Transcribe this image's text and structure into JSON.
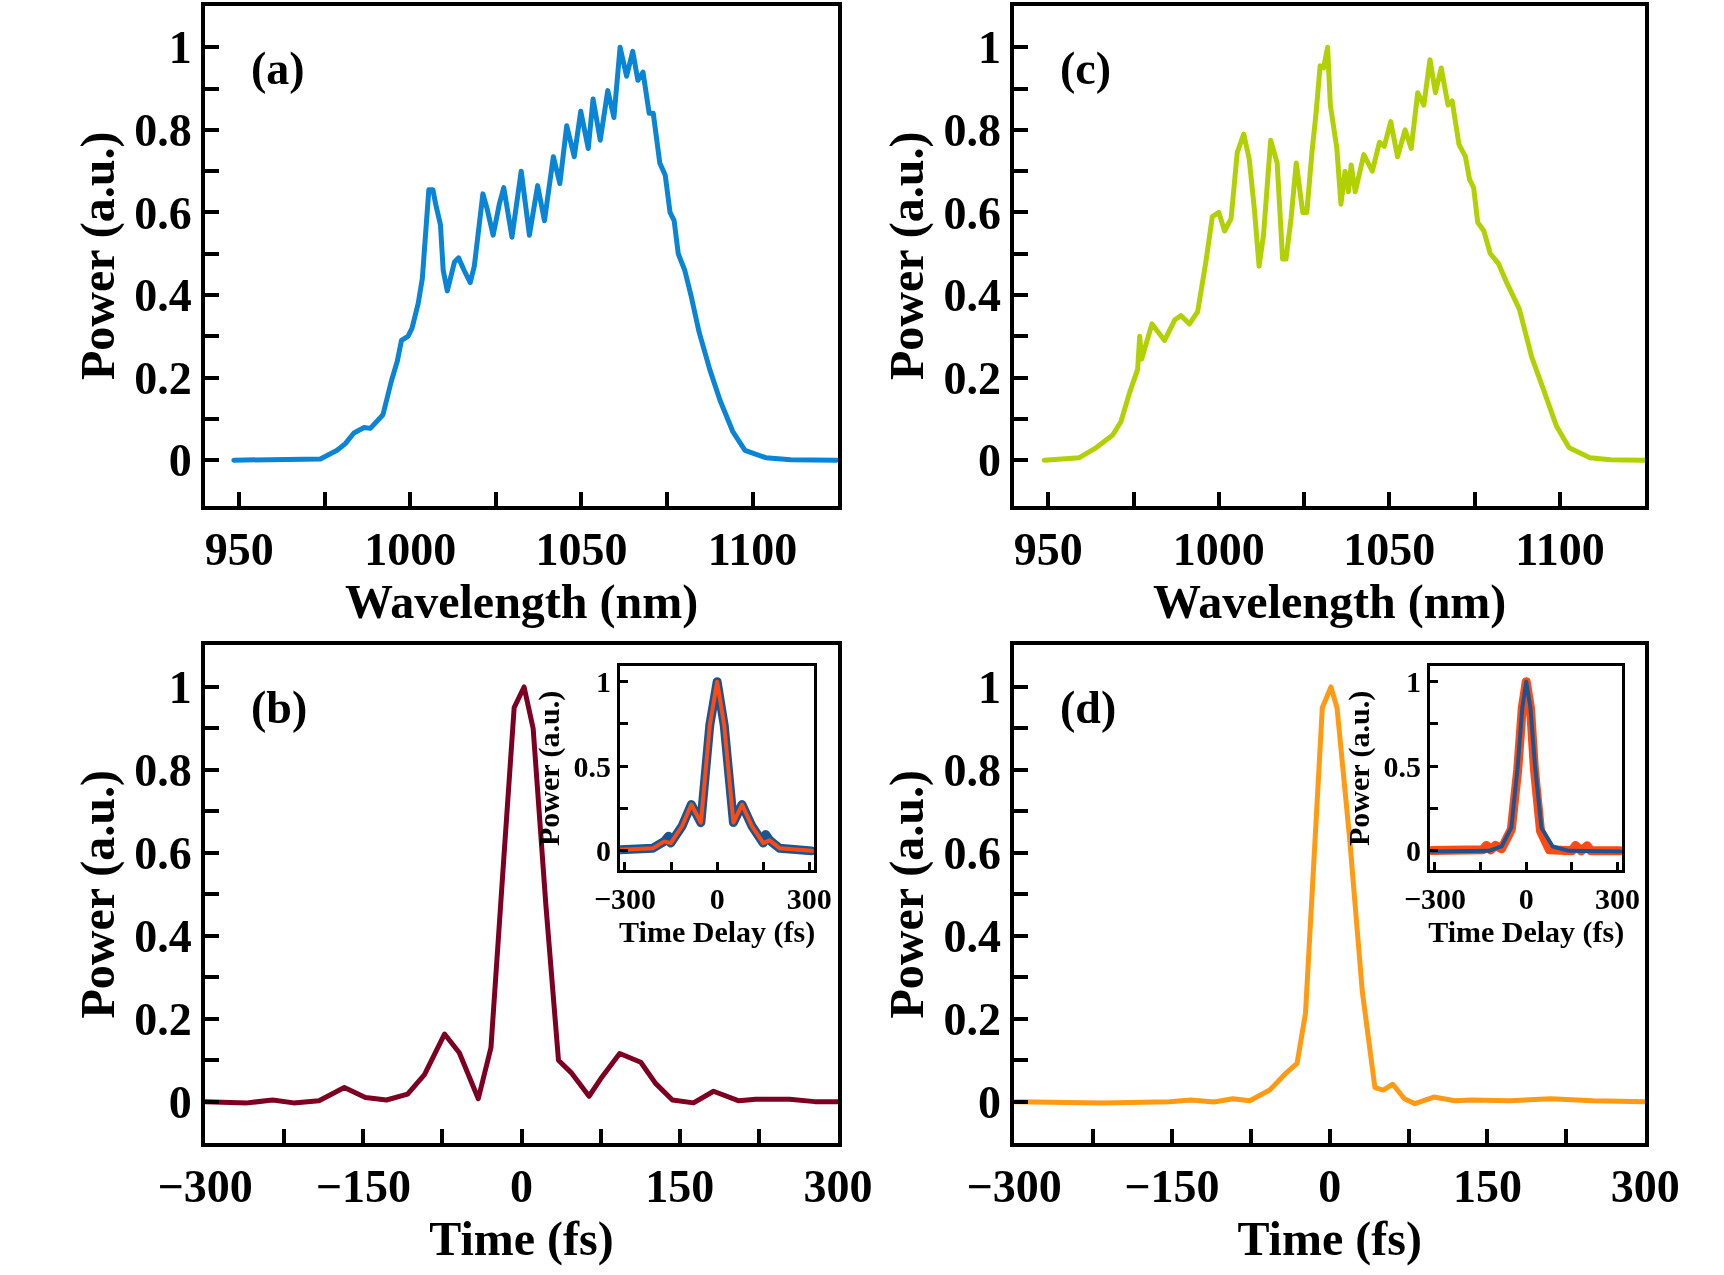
{
  "chart_data": [
    {
      "type": "line",
      "xlabel": "Wavelength (nm)",
      "ylabel": "Power (a.u.)",
      "annotations": [
        "(a)"
      ],
      "xlim": [
        940,
        1125
      ],
      "ylim": [
        -0.11,
        1.1
      ],
      "xticks": [
        950,
        {
          "value": 975,
          "label": null
        },
        1000,
        {
          "value": 1025,
          "label": null
        },
        1050,
        {
          "value": 1075,
          "label": null
        },
        1100
      ],
      "yticks": [
        0,
        {
          "value": 0.1,
          "label": null
        },
        0.2,
        {
          "value": 0.3,
          "label": null
        },
        0.4,
        {
          "value": 0.5,
          "label": null
        },
        0.6,
        {
          "value": 0.7,
          "label": null
        },
        0.8,
        {
          "value": 0.9,
          "label": null
        },
        1
      ],
      "series": [
        {
          "color": "#0a84d4",
          "x": [
            948.4,
            973.7,
            978.6,
            981,
            983.5,
            986.5,
            988.3,
            992,
            994.4,
            996.2,
            997.4,
            999.3,
            1000.5,
            1002.3,
            1003.5,
            1005.4,
            1006.6,
            1007.4,
            1008.8,
            1009.6,
            1010.8,
            1012.9,
            1014.1,
            1015.7,
            1017.5,
            1018.7,
            1021.2,
            1022.4,
            1024.2,
            1026,
            1027.3,
            1029.7,
            1032.4,
            1034.8,
            1037.2,
            1039.2,
            1041.8,
            1043.7,
            1045.7,
            1047.9,
            1049.8,
            1052,
            1053.4,
            1055.5,
            1057.7,
            1059.5,
            1061.3,
            1063.2,
            1065,
            1066.5,
            1068,
            1069.8,
            1071,
            1072.9,
            1074.5,
            1075.9,
            1077.1,
            1078.3,
            1080.2,
            1082,
            1084.4,
            1087.5,
            1090.5,
            1094.2,
            1097.8,
            1103.9,
            1111.2,
            1124.6
          ],
          "values": [
            0,
            0.003,
            0.024,
            0.04,
            0.066,
            0.079,
            0.077,
            0.11,
            0.19,
            0.24,
            0.29,
            0.3,
            0.32,
            0.38,
            0.44,
            0.655,
            0.655,
            0.62,
            0.57,
            0.46,
            0.41,
            0.48,
            0.49,
            0.46,
            0.43,
            0.47,
            0.645,
            0.61,
            0.545,
            0.62,
            0.66,
            0.54,
            0.7,
            0.545,
            0.665,
            0.58,
            0.735,
            0.67,
            0.81,
            0.735,
            0.845,
            0.755,
            0.875,
            0.775,
            0.895,
            0.83,
            1.0,
            0.93,
            0.99,
            0.92,
            0.94,
            0.84,
            0.84,
            0.72,
            0.69,
            0.6,
            0.58,
            0.5,
            0.46,
            0.4,
            0.31,
            0.22,
            0.145,
            0.07,
            0.024,
            0.006,
            0.001,
            0
          ]
        }
      ]
    },
    {
      "type": "line",
      "xlabel": "Wavelength (nm)",
      "ylabel": "Power (a.u.)",
      "annotations": [
        "(c)"
      ],
      "xlim": [
        940,
        1125
      ],
      "ylim": [
        -0.11,
        1.1
      ],
      "xticks": [
        950,
        {
          "value": 975,
          "label": null
        },
        1000,
        {
          "value": 1025,
          "label": null
        },
        1050,
        {
          "value": 1075,
          "label": null
        },
        1100
      ],
      "yticks": [
        0,
        {
          "value": 0.1,
          "label": null
        },
        0.2,
        {
          "value": 0.3,
          "label": null
        },
        0.4,
        {
          "value": 0.5,
          "label": null
        },
        0.6,
        {
          "value": 0.7,
          "label": null
        },
        0.8,
        {
          "value": 0.9,
          "label": null
        },
        1
      ],
      "series": [
        {
          "color": "#b2d104",
          "x": [
            948.8,
            959.1,
            964,
            968.9,
            971.3,
            973.7,
            976.2,
            976.8,
            977.4,
            980.4,
            984.1,
            987.1,
            988.9,
            991.4,
            993.8,
            996.2,
            998.1,
            1000,
            1001.7,
            1003.6,
            1005.4,
            1007.3,
            1008.9,
            1010.4,
            1011.8,
            1013.1,
            1015.2,
            1017.1,
            1018.7,
            1019.7,
            1021.2,
            1022.7,
            1024.6,
            1025.8,
            1027.3,
            1028.5,
            1029.7,
            1030.7,
            1031.9,
            1032.7,
            1034.6,
            1035.8,
            1037,
            1038,
            1038.8,
            1040,
            1042.5,
            1045,
            1047.1,
            1048.5,
            1050.4,
            1052.4,
            1054.6,
            1056.4,
            1058.3,
            1060.1,
            1061.9,
            1063.5,
            1065.2,
            1067.2,
            1068.4,
            1070.4,
            1072.3,
            1073.5,
            1074.7,
            1075.9,
            1077.7,
            1079.6,
            1082,
            1084.4,
            1088.1,
            1091.7,
            1095.4,
            1099,
            1102.7,
            1108.8,
            1114.8,
            1124.6
          ],
          "values": [
            0,
            0.006,
            0.03,
            0.061,
            0.093,
            0.16,
            0.22,
            0.3,
            0.245,
            0.33,
            0.29,
            0.34,
            0.35,
            0.33,
            0.36,
            0.48,
            0.59,
            0.6,
            0.555,
            0.585,
            0.745,
            0.79,
            0.73,
            0.61,
            0.47,
            0.545,
            0.775,
            0.72,
            0.487,
            0.487,
            0.587,
            0.72,
            0.6,
            0.6,
            0.745,
            0.84,
            0.955,
            0.95,
            1.0,
            0.86,
            0.755,
            0.62,
            0.7,
            0.65,
            0.715,
            0.65,
            0.74,
            0.7,
            0.77,
            0.76,
            0.82,
            0.735,
            0.8,
            0.755,
            0.89,
            0.86,
            0.97,
            0.89,
            0.95,
            0.86,
            0.87,
            0.765,
            0.735,
            0.68,
            0.66,
            0.576,
            0.555,
            0.5,
            0.476,
            0.43,
            0.366,
            0.25,
            0.166,
            0.082,
            0.03,
            0.006,
            0.001,
            0
          ]
        }
      ]
    },
    {
      "type": "line",
      "xlabel": "Time (fs)",
      "ylabel": "Power (a.u.)",
      "annotations": [
        "(b)"
      ],
      "xlim": [
        -300,
        300
      ],
      "ylim": [
        -0.1,
        1.1
      ],
      "xticks": [
        {
          "value": -300,
          "label": "−300"
        },
        {
          "value": -225,
          "label": null
        },
        {
          "value": -150,
          "label": "−150"
        },
        {
          "value": -75,
          "label": null
        },
        0,
        {
          "value": 75,
          "label": null
        },
        150,
        {
          "value": 225,
          "label": null
        },
        300
      ],
      "yticks": [
        0,
        {
          "value": 0.1,
          "label": null
        },
        0.2,
        {
          "value": 0.3,
          "label": null
        },
        0.4,
        {
          "value": 0.5,
          "label": null
        },
        0.6,
        {
          "value": 0.7,
          "label": null
        },
        0.8,
        {
          "value": 0.9,
          "label": null
        },
        1
      ],
      "series": [
        {
          "color": "#7d0023",
          "x": [
            -300,
            -260,
            -236,
            -216,
            -192,
            -168,
            -148,
            -128,
            -108,
            -92,
            -73,
            -59,
            -41,
            -29,
            -17,
            -7,
            2.4,
            11,
            23,
            35,
            47,
            64,
            75,
            93,
            113,
            127,
            143,
            163,
            182,
            206,
            222,
            254,
            278,
            300
          ],
          "values": [
            0,
            -0.003,
            0.004,
            -0.003,
            0.002,
            0.034,
            0.01,
            0.004,
            0.018,
            0.065,
            0.163,
            0.118,
            0.007,
            0.13,
            0.58,
            0.95,
            1.0,
            0.9,
            0.476,
            0.1,
            0.07,
            0.013,
            0.055,
            0.116,
            0.095,
            0.044,
            0.004,
            -0.003,
            0.025,
            0.002,
            0.006,
            0.006,
            0,
            0
          ]
        }
      ]
    },
    {
      "type": "line",
      "xlabel": "Time Delay (fs)",
      "ylabel": "Power (a.u.)",
      "xlim": [
        -316,
        316
      ],
      "ylim": [
        -0.115,
        1.09
      ],
      "xticks": [
        {
          "value": -300,
          "label": "−300"
        },
        {
          "value": -150,
          "label": null
        },
        0,
        {
          "value": 150,
          "label": null
        },
        300
      ],
      "yticks": [
        0,
        {
          "value": 0.25,
          "label": null
        },
        0.5,
        {
          "value": 0.75,
          "label": null
        },
        1
      ],
      "series": [
        {
          "color": "#1b5591",
          "x": [
            -315,
            -209,
            -172,
            -158,
            -151,
            -114,
            -84,
            -53,
            -24,
            0,
            23,
            53,
            81,
            113,
            150,
            158,
            171,
            203,
            308
          ],
          "values": [
            0.006,
            0.016,
            0.056,
            0.087,
            0.046,
            0.147,
            0.274,
            0.167,
            0.742,
            1.0,
            0.742,
            0.167,
            0.274,
            0.147,
            0.046,
            0.097,
            0.062,
            0.016,
            0
          ]
        },
        {
          "color": "#ff4a14",
          "x": [
            -315,
            -209,
            -172,
            -151,
            -114,
            -84,
            -53,
            -24,
            0,
            23,
            53,
            81,
            113,
            150,
            171,
            203,
            308
          ],
          "values": [
            0.006,
            0.016,
            0.056,
            0.046,
            0.147,
            0.274,
            0.167,
            0.742,
            1.0,
            0.742,
            0.167,
            0.274,
            0.147,
            0.046,
            0.062,
            0.016,
            0
          ]
        }
      ]
    },
    {
      "type": "line",
      "xlabel": "Time (fs)",
      "ylabel": "Power (a.u.)",
      "annotations": [
        "(d)"
      ],
      "xlim": [
        -300,
        300
      ],
      "ylim": [
        -0.1,
        1.1
      ],
      "xticks": [
        {
          "value": -300,
          "label": "−300"
        },
        {
          "value": -225,
          "label": null
        },
        {
          "value": -150,
          "label": "−150"
        },
        {
          "value": -75,
          "label": null
        },
        0,
        {
          "value": 75,
          "label": null
        },
        150,
        {
          "value": 225,
          "label": null
        },
        300
      ],
      "yticks": [
        0,
        {
          "value": 0.1,
          "label": null
        },
        0.2,
        {
          "value": 0.3,
          "label": null
        },
        0.4,
        {
          "value": 0.5,
          "label": null
        },
        0.6,
        {
          "value": 0.7,
          "label": null
        },
        0.8,
        {
          "value": 0.9,
          "label": null
        },
        1
      ],
      "series": [
        {
          "color": "#ff9a12",
          "x": [
            -300,
            -216,
            -152,
            -132,
            -110,
            -92,
            -76,
            -57,
            -41,
            -31,
            -23,
            -15,
            -7,
            1.2,
            7,
            19,
            31,
            43,
            51,
            60,
            71,
            81,
            99,
            119,
            135,
            171,
            210,
            250,
            300
          ],
          "values": [
            0,
            -0.003,
            0,
            0.004,
            -0.001,
            0.007,
            0.002,
            0.028,
            0.07,
            0.092,
            0.213,
            0.58,
            0.95,
            1.0,
            0.95,
            0.634,
            0.266,
            0.034,
            0.028,
            0.042,
            0.007,
            -0.005,
            0.011,
            0.002,
            0.004,
            0.002,
            0.007,
            0.002,
            0
          ]
        }
      ]
    },
    {
      "type": "line",
      "xlabel": "Time Delay (fs)",
      "ylabel": "Power (a.u.)",
      "xlim": [
        -316,
        316
      ],
      "ylim": [
        -0.115,
        1.09
      ],
      "xticks": [
        {
          "value": -300,
          "label": "−300"
        },
        {
          "value": -150,
          "label": null
        },
        0,
        {
          "value": 150,
          "label": null
        },
        300
      ],
      "yticks": [
        0,
        {
          "value": 0.25,
          "label": null
        },
        0.5,
        {
          "value": 0.75,
          "label": null
        },
        1
      ],
      "series": [
        {
          "color": "#ff4a14",
          "x": [
            -312,
            -143,
            -131,
            -117,
            -101,
            -81,
            -49,
            -28,
            -13,
            0,
            14,
            27,
            47,
            76,
            150,
            162,
            181,
            200,
            213,
            309
          ],
          "values": [
            0.002,
            0.006,
            0.032,
            0.006,
            0.032,
            0.012,
            0.127,
            0.48,
            0.843,
            1.0,
            0.843,
            0.48,
            0.117,
            0.006,
            0,
            0.032,
            0,
            0.03,
            0,
            0
          ]
        },
        {
          "color": "#1b5591",
          "x": [
            -312,
            -123,
            -81,
            -49,
            -28,
            -13,
            0,
            14,
            29,
            50,
            87,
            140,
            309
          ],
          "values": [
            -0.004,
            0,
            0.026,
            0.137,
            0.5,
            0.843,
            1.0,
            0.843,
            0.5,
            0.137,
            0.026,
            0,
            -0.004
          ]
        }
      ]
    }
  ]
}
